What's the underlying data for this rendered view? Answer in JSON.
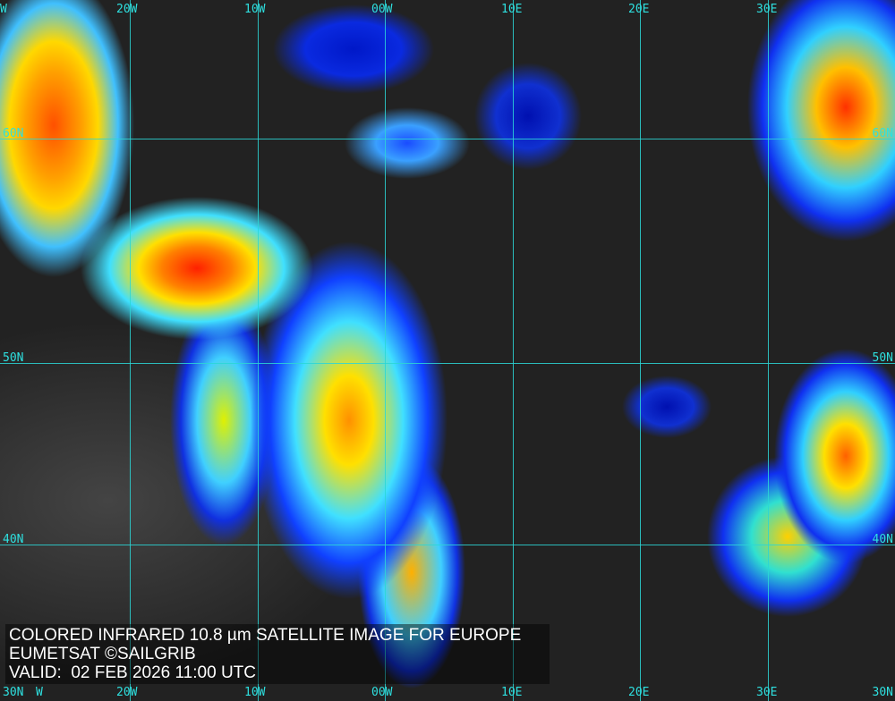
{
  "caption": {
    "line1": "COLORED INFRARED 10.8 µm SATELLITE IMAGE FOR EUROPE",
    "line2": "EUMETSAT ©SAILGRIB",
    "line3": "VALID:  02 FEB 2026 11:00 UTC"
  },
  "grid": {
    "longitudes": [
      "W",
      "20W",
      "10W",
      "00W",
      "10E",
      "20E",
      "30E"
    ],
    "latitudes_left": [
      "60N",
      "50N",
      "40N",
      "30N"
    ],
    "latitudes_right": [
      "60N",
      "50N",
      "40N",
      "30N"
    ],
    "color": "#2ee0e0"
  },
  "colors": {
    "cold_top": "#ff2000",
    "mid": "#ffe000",
    "warm": "#1030f0",
    "clear": "#6e6e6e"
  }
}
